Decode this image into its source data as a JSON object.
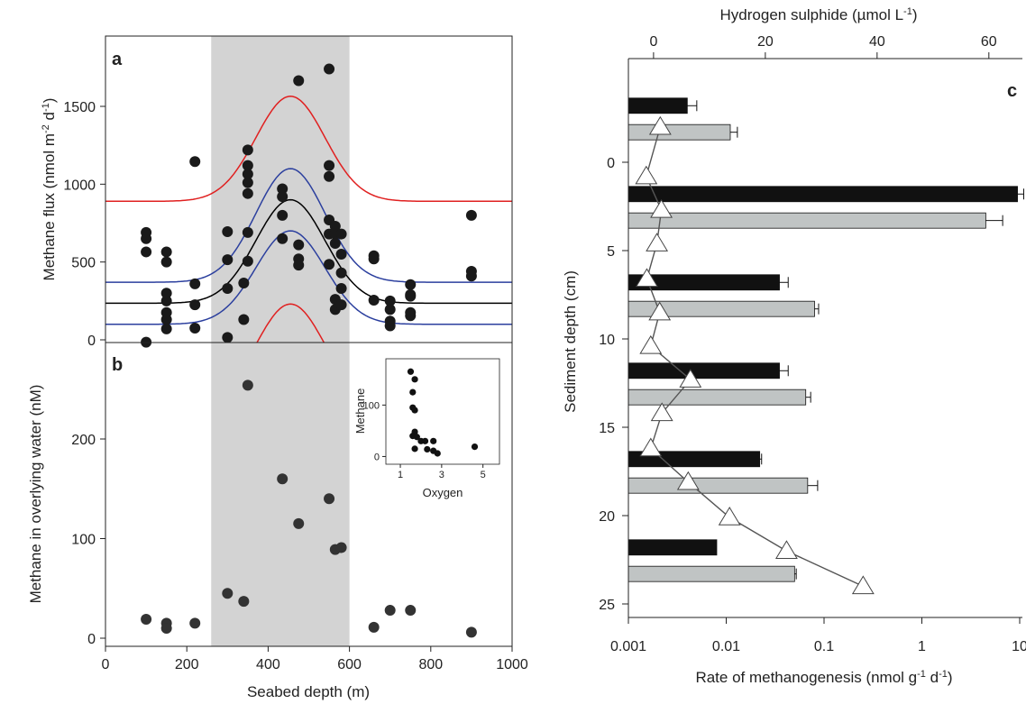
{
  "chart_data": [
    {
      "id": "a",
      "type": "scatter",
      "panel_label": "a",
      "xlabel": "",
      "ylabel": "Methane flux (nmol m",
      "ylabel_sup1": "-2",
      "ylabel_mid": " d",
      "ylabel_sup2": "-1",
      "ylabel_end": ")",
      "xlim": [
        0,
        1000
      ],
      "ylim": [
        0,
        1700
      ],
      "yticks": [
        "0",
        "500",
        "1000",
        "1500"
      ],
      "shaded_region": [
        260,
        600
      ],
      "colors": {
        "points": "#1a1a1a",
        "fit": "#000000",
        "confidence": "#2b3f9e",
        "prediction": "#e02020",
        "shade": "#d3d3d3"
      },
      "curves": {
        "fit": {
          "baseline": 235,
          "peak": 900,
          "center": 455,
          "width": 85
        },
        "confidence": [
          {
            "baseline": 370,
            "peak": 1100,
            "center": 455,
            "width": 85
          },
          {
            "baseline": 100,
            "peak": 700,
            "center": 455,
            "width": 85
          }
        ],
        "prediction": [
          {
            "baseline": 890,
            "peak": 1565,
            "center": 455,
            "width": 85
          },
          {
            "baseline": -430,
            "peak": 230,
            "center": 455,
            "width": 85
          }
        ]
      },
      "points": [
        [
          100,
          690
        ],
        [
          100,
          650
        ],
        [
          100,
          565
        ],
        [
          100,
          -15
        ],
        [
          150,
          565
        ],
        [
          150,
          500
        ],
        [
          150,
          300
        ],
        [
          150,
          250
        ],
        [
          150,
          175
        ],
        [
          150,
          130
        ],
        [
          150,
          70
        ],
        [
          220,
          1145
        ],
        [
          220,
          360
        ],
        [
          220,
          225
        ],
        [
          220,
          75
        ],
        [
          300,
          695
        ],
        [
          300,
          515
        ],
        [
          300,
          330
        ],
        [
          300,
          15
        ],
        [
          340,
          365
        ],
        [
          340,
          130
        ],
        [
          350,
          1220
        ],
        [
          350,
          1120
        ],
        [
          350,
          1065
        ],
        [
          350,
          1010
        ],
        [
          350,
          940
        ],
        [
          350,
          690
        ],
        [
          350,
          505
        ],
        [
          435,
          970
        ],
        [
          435,
          920
        ],
        [
          435,
          800
        ],
        [
          435,
          650
        ],
        [
          475,
          1665
        ],
        [
          475,
          610
        ],
        [
          475,
          520
        ],
        [
          475,
          480
        ],
        [
          550,
          1740
        ],
        [
          550,
          1120
        ],
        [
          550,
          1050
        ],
        [
          550,
          770
        ],
        [
          550,
          680
        ],
        [
          550,
          485
        ],
        [
          565,
          730
        ],
        [
          565,
          680
        ],
        [
          565,
          620
        ],
        [
          565,
          260
        ],
        [
          565,
          195
        ],
        [
          580,
          680
        ],
        [
          580,
          550
        ],
        [
          580,
          430
        ],
        [
          580,
          330
        ],
        [
          580,
          225
        ],
        [
          660,
          540
        ],
        [
          660,
          520
        ],
        [
          660,
          255
        ],
        [
          700,
          250
        ],
        [
          700,
          195
        ],
        [
          700,
          120
        ],
        [
          700,
          90
        ],
        [
          750,
          355
        ],
        [
          750,
          290
        ],
        [
          750,
          280
        ],
        [
          750,
          175
        ],
        [
          750,
          155
        ],
        [
          900,
          800
        ],
        [
          900,
          440
        ],
        [
          900,
          410
        ]
      ]
    },
    {
      "id": "b",
      "type": "scatter",
      "panel_label": "b",
      "xlabel": "Seabed depth (m)",
      "ylabel": "Methane in overlying water  (nM)",
      "xlim": [
        0,
        1000
      ],
      "ylim": [
        0,
        290
      ],
      "xticks": [
        "0",
        "200",
        "400",
        "600",
        "800",
        "1000"
      ],
      "yticks": [
        "0",
        "100",
        "200"
      ],
      "shaded_region": [
        260,
        600
      ],
      "colors": {
        "points": "#333333"
      },
      "points": [
        [
          100,
          19
        ],
        [
          150,
          15
        ],
        [
          150,
          10
        ],
        [
          220,
          15
        ],
        [
          300,
          45
        ],
        [
          340,
          37
        ],
        [
          350,
          254
        ],
        [
          435,
          160
        ],
        [
          475,
          115
        ],
        [
          550,
          140
        ],
        [
          565,
          89
        ],
        [
          580,
          91
        ],
        [
          660,
          11
        ],
        [
          700,
          28
        ],
        [
          750,
          28
        ],
        [
          900,
          6
        ]
      ],
      "inset": {
        "type": "scatter",
        "xlabel": "Oxygen",
        "ylabel": "Methane",
        "xlim": [
          0.3,
          5.8
        ],
        "ylim": [
          -15,
          190
        ],
        "xticks": [
          "1",
          "3",
          "5"
        ],
        "yticks": [
          "0",
          "100"
        ],
        "points": [
          [
            1.5,
            165
          ],
          [
            1.7,
            150
          ],
          [
            1.6,
            125
          ],
          [
            1.6,
            95
          ],
          [
            1.7,
            90
          ],
          [
            1.7,
            48
          ],
          [
            1.6,
            40
          ],
          [
            1.8,
            38
          ],
          [
            2.0,
            30
          ],
          [
            2.2,
            30
          ],
          [
            2.6,
            30
          ],
          [
            1.7,
            15
          ],
          [
            2.3,
            14
          ],
          [
            2.6,
            11
          ],
          [
            2.8,
            6
          ],
          [
            4.6,
            19
          ]
        ]
      }
    },
    {
      "id": "c",
      "type": "bar",
      "orientation": "horizontal",
      "panel_label": "c",
      "xlabel": "Rate of methanogenesis (nmol g",
      "xlabel_sup1": "-1",
      "xlabel_mid": " d",
      "xlabel_sup2": "-1",
      "xlabel_end": ")",
      "top_xlabel": "Hydrogen sulphide (µmol L",
      "top_xlabel_sup": "-1",
      "top_xlabel_end": ")",
      "ylabel": "Sediment depth (cm)",
      "x_scale": "log",
      "xlim": [
        0.001,
        10
      ],
      "xticks": [
        "0.001",
        "0.01",
        "0.1",
        "1",
        "10"
      ],
      "top_xlim": [
        -4.5,
        66
      ],
      "top_xticks": [
        "0",
        "20",
        "40",
        "60"
      ],
      "ylim": [
        -5,
        26
      ],
      "yticks": [
        "0",
        "5",
        "10",
        "15",
        "20",
        "25"
      ],
      "colors": {
        "series_1": "#111111",
        "series_2": "#c0c4c4",
        "sulphide": "#ffffff",
        "sulphide_line": "#555555"
      },
      "bars": [
        {
          "depth": -3.2,
          "value": 0.004,
          "error": 0.001,
          "series": 1
        },
        {
          "depth": -1.7,
          "value": 0.011,
          "error": 0.002,
          "series": 2
        },
        {
          "depth": 1.8,
          "value": 9.5,
          "error": 1.5,
          "series": 1
        },
        {
          "depth": 3.3,
          "value": 4.5,
          "error": 2.2,
          "series": 2
        },
        {
          "depth": 6.8,
          "value": 0.035,
          "error": 0.008,
          "series": 1
        },
        {
          "depth": 8.3,
          "value": 0.08,
          "error": 0.008,
          "series": 2
        },
        {
          "depth": 11.8,
          "value": 0.035,
          "error": 0.008,
          "series": 1
        },
        {
          "depth": 13.3,
          "value": 0.065,
          "error": 0.008,
          "series": 2
        },
        {
          "depth": 16.8,
          "value": 0.022,
          "error": 0.001,
          "series": 1
        },
        {
          "depth": 18.3,
          "value": 0.068,
          "error": 0.018,
          "series": 2
        },
        {
          "depth": 21.8,
          "value": 0.008,
          "error": 0,
          "series": 1
        },
        {
          "depth": 23.3,
          "value": 0.05,
          "error": 0.002,
          "series": 2
        }
      ],
      "sulphide_profile": [
        [
          1.2,
          -2.0
        ],
        [
          -1.3,
          0.8
        ],
        [
          1.4,
          2.7
        ],
        [
          0.6,
          4.6
        ],
        [
          -1.2,
          6.6
        ],
        [
          1.1,
          8.5
        ],
        [
          -0.5,
          10.4
        ],
        [
          6.6,
          12.3
        ],
        [
          1.5,
          14.2
        ],
        [
          -0.5,
          16.2
        ],
        [
          6.2,
          18.1
        ],
        [
          13.6,
          20.1
        ],
        [
          23.8,
          22.0
        ],
        [
          37.5,
          24.0
        ]
      ]
    }
  ]
}
